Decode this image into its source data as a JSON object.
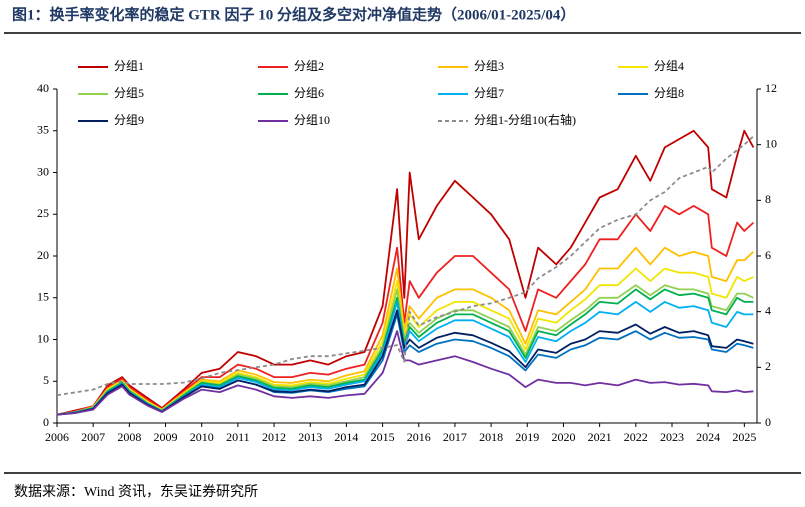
{
  "chart_data": {
    "type": "line",
    "title": "图1：换手率变化率的稳定 GTR 因子 10 分组及多空对冲净值走势（2006/01-2025/04）",
    "source": "数据来源：Wind 资讯，东吴证券研究所",
    "x": [
      2006.0,
      2006.5,
      2007.0,
      2007.4,
      2007.8,
      2008.0,
      2008.5,
      2008.9,
      2009.5,
      2010.0,
      2010.5,
      2011.0,
      2011.5,
      2012.0,
      2012.5,
      2013.0,
      2013.5,
      2014.0,
      2014.5,
      2015.0,
      2015.4,
      2015.6,
      2015.75,
      2016.0,
      2016.5,
      2017.0,
      2017.5,
      2018.0,
      2018.5,
      2018.95,
      2019.3,
      2019.8,
      2020.2,
      2020.6,
      2021.0,
      2021.5,
      2022.0,
      2022.4,
      2022.8,
      2023.2,
      2023.6,
      2024.0,
      2024.1,
      2024.5,
      2024.8,
      2025.0,
      2025.25
    ],
    "xlim": [
      2006,
      2025.35
    ],
    "xticks": [
      2006,
      2007,
      2008,
      2009,
      2010,
      2011,
      2012,
      2013,
      2014,
      2015,
      2016,
      2017,
      2018,
      2019,
      2020,
      2021,
      2022,
      2023,
      2024,
      2025
    ],
    "ylim": [
      0,
      40
    ],
    "yticks": [
      0,
      5,
      10,
      15,
      20,
      25,
      30,
      35,
      40
    ],
    "y2lim": [
      0,
      12
    ],
    "y2ticks": [
      0,
      2,
      4,
      6,
      8,
      10,
      12
    ],
    "series": [
      {
        "name": "分组1",
        "color": "#c00000",
        "values": [
          1,
          1.5,
          2,
          4.5,
          5.5,
          4.5,
          3,
          1.8,
          4,
          6,
          6.5,
          8.5,
          8,
          7,
          7,
          7.5,
          7,
          8,
          8.5,
          14,
          28,
          15,
          30,
          22,
          26,
          29,
          27,
          25,
          22,
          15,
          21,
          19,
          21,
          24,
          27,
          28,
          32,
          29,
          33,
          34,
          35,
          33,
          28,
          27,
          32,
          35,
          33
        ]
      },
      {
        "name": "分组2",
        "color": "#ee2020",
        "values": [
          1,
          1.4,
          2,
          4.3,
          5.3,
          4.3,
          2.8,
          1.7,
          3.8,
          5.5,
          5.5,
          7,
          6.5,
          5.5,
          5.5,
          6,
          5.8,
          6.5,
          7,
          12,
          21,
          12,
          17,
          15,
          18,
          20,
          20,
          18,
          16,
          11,
          16,
          15,
          17,
          19,
          22,
          22,
          25,
          23,
          26,
          25,
          26,
          25,
          21,
          20,
          24,
          23,
          24
        ]
      },
      {
        "name": "分组3",
        "color": "#ffc000",
        "values": [
          1,
          1.3,
          1.9,
          4.1,
          5.1,
          4.1,
          2.6,
          1.6,
          3.6,
          5.2,
          5.0,
          6.3,
          5.8,
          4.9,
          4.8,
          5.2,
          5.0,
          5.7,
          6.2,
          10.5,
          18.5,
          11,
          14,
          12.5,
          15,
          16,
          16,
          15,
          13.5,
          9.5,
          13.5,
          13,
          14.5,
          16,
          18.5,
          18.5,
          21,
          19,
          21,
          20,
          20.5,
          20,
          17.5,
          17,
          19.5,
          19.5,
          20.5
        ]
      },
      {
        "name": "分组4",
        "color": "#f2e600",
        "values": [
          1,
          1.3,
          1.9,
          4.0,
          5.0,
          4.0,
          2.5,
          1.55,
          3.5,
          5.0,
          4.8,
          6.0,
          5.5,
          4.6,
          4.5,
          4.9,
          4.7,
          5.3,
          5.8,
          9.8,
          17,
          10.5,
          13,
          11.5,
          13.5,
          14.5,
          14.5,
          13.5,
          12.5,
          8.8,
          12.5,
          12,
          13.5,
          14.8,
          16.5,
          16.5,
          18.5,
          17,
          18.5,
          18,
          18,
          17.5,
          15.5,
          15,
          17.5,
          17,
          17.5
        ]
      },
      {
        "name": "分组5",
        "color": "#92d050",
        "values": [
          1,
          1.3,
          1.85,
          3.9,
          4.9,
          3.9,
          2.4,
          1.5,
          3.4,
          4.9,
          4.6,
          5.8,
          5.3,
          4.4,
          4.3,
          4.7,
          4.5,
          5.0,
          5.5,
          9.2,
          16,
          10,
          12,
          10.8,
          12.5,
          13.5,
          13.5,
          12.5,
          11.5,
          8.2,
          11.5,
          11,
          12.3,
          13.5,
          15,
          15,
          16.5,
          15.3,
          16.5,
          16,
          16,
          15.5,
          14,
          13.5,
          15.5,
          15.5,
          15
        ]
      },
      {
        "name": "分组6",
        "color": "#00b050",
        "values": [
          1,
          1.3,
          1.8,
          3.8,
          4.8,
          3.8,
          2.35,
          1.45,
          3.3,
          4.8,
          4.5,
          5.6,
          5.1,
          4.2,
          4.1,
          4.5,
          4.3,
          4.8,
          5.2,
          8.8,
          15,
          9.5,
          11.5,
          10.3,
          12,
          13,
          13,
          12,
          11,
          7.8,
          11,
          10.5,
          11.8,
          13,
          14.5,
          14.3,
          16,
          14.8,
          16,
          15.3,
          15.5,
          15,
          13.5,
          13,
          15,
          14.5,
          14.5
        ]
      },
      {
        "name": "分组7",
        "color": "#00b0f0",
        "values": [
          1,
          1.25,
          1.75,
          3.7,
          4.7,
          3.7,
          2.3,
          1.4,
          3.2,
          4.6,
          4.3,
          5.4,
          4.9,
          4.0,
          3.9,
          4.3,
          4.1,
          4.6,
          5.0,
          8.4,
          14.5,
          9,
          11,
          9.8,
          11.3,
          12.3,
          12.3,
          11.3,
          10.3,
          7.3,
          10.3,
          9.8,
          11,
          12,
          13.3,
          13,
          14.5,
          13.3,
          14.5,
          13.8,
          14,
          13.5,
          12,
          11.5,
          13.3,
          13,
          13
        ]
      },
      {
        "name": "分组8",
        "color": "#0070c0",
        "values": [
          1,
          1.2,
          1.7,
          3.6,
          4.6,
          3.6,
          2.2,
          1.35,
          3.1,
          4.4,
          4.1,
          5.1,
          4.6,
          3.7,
          3.6,
          3.9,
          3.7,
          4.1,
          4.4,
          7.5,
          13,
          8.5,
          9.3,
          8.5,
          9.5,
          10,
          9.8,
          9,
          8,
          6.3,
          8.2,
          7.8,
          8.8,
          9.3,
          10.2,
          10,
          11,
          10,
          10.8,
          10.2,
          10.3,
          10,
          8.8,
          8.5,
          9.5,
          9.3,
          9
        ]
      },
      {
        "name": "分组9",
        "color": "#002060",
        "values": [
          1,
          1.2,
          1.7,
          3.6,
          4.6,
          3.6,
          2.2,
          1.35,
          3.1,
          4.4,
          4.1,
          5.1,
          4.6,
          3.8,
          3.7,
          4.0,
          3.8,
          4.3,
          4.6,
          8,
          13.5,
          9,
          10,
          9,
          10.2,
          10.8,
          10.5,
          9.6,
          8.6,
          6.7,
          8.8,
          8.4,
          9.5,
          10,
          11,
          10.8,
          11.8,
          10.7,
          11.5,
          10.8,
          11,
          10.5,
          9.2,
          9,
          10,
          9.8,
          9.5
        ]
      },
      {
        "name": "分组10",
        "color": "#7030a0",
        "values": [
          1,
          1.2,
          1.6,
          3.4,
          4.4,
          3.4,
          2.1,
          1.3,
          2.9,
          4.0,
          3.7,
          4.5,
          4.0,
          3.2,
          3.0,
          3.2,
          3.0,
          3.3,
          3.5,
          6,
          11,
          7.5,
          7.5,
          7,
          7.5,
          8,
          7.3,
          6.5,
          5.8,
          4.3,
          5.2,
          4.8,
          4.8,
          4.5,
          4.8,
          4.5,
          5.2,
          4.8,
          4.9,
          4.6,
          4.7,
          4.5,
          3.8,
          3.7,
          3.9,
          3.7,
          3.8
        ]
      },
      {
        "name": "分组1-分组10(右轴)",
        "color": "#8c8c8c",
        "dashed": true,
        "axis": "y2",
        "values": [
          1,
          1.1,
          1.2,
          1.4,
          1.5,
          1.4,
          1.4,
          1.4,
          1.45,
          1.6,
          1.8,
          1.9,
          2.0,
          2.1,
          2.3,
          2.4,
          2.4,
          2.5,
          2.6,
          2.7,
          2.8,
          2.2,
          4.0,
          3.5,
          3.8,
          4.0,
          4.2,
          4.3,
          4.5,
          4.7,
          5.2,
          5.6,
          6.0,
          6.5,
          7.0,
          7.3,
          7.5,
          8.0,
          8.3,
          8.8,
          9.0,
          9.2,
          9.0,
          9.5,
          9.8,
          10.0,
          10.3
        ]
      }
    ]
  }
}
